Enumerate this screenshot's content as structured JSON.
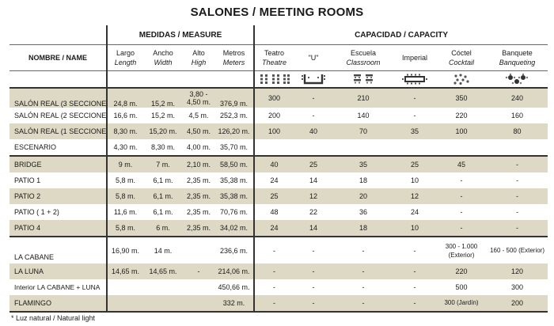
{
  "title": "SALONES / MEETING ROOMS",
  "groups": {
    "measures": "MEDIDAS / MEASURE",
    "capacity": "CAPACIDAD / CAPACITY"
  },
  "headers": {
    "name": "NOMBRE / NAME",
    "largo": "Largo",
    "length": "Length",
    "ancho": "Ancho",
    "width": "Width",
    "alto": "Alto",
    "high": "High",
    "metros": "Metros",
    "meters": "Meters",
    "teatro": "Teatro",
    "theatre": "Theatre",
    "u": "\"U\"",
    "escuela": "Escuela",
    "classroom": "Classroom",
    "imperial": "Imperial",
    "coctel": "Cóctel",
    "cocktail": "Cocktail",
    "banquete": "Banquete",
    "banqueting": "Banqueting"
  },
  "icons": [
    "theatre-icon",
    "u-shape-icon",
    "classroom-icon",
    "imperial-icon",
    "cocktail-icon",
    "banquet-icon"
  ],
  "shade_color": "#ddd9c4",
  "rows": [
    {
      "name": "SALÓN REAL (3 SECCIONES)",
      "largo": "24,8 m.",
      "ancho": "15,2 m.",
      "alto": "3,80 - 4,50 m.",
      "metros": "376,9 m.",
      "teatro": "300",
      "u": "-",
      "escuela": "210",
      "imperial": "-",
      "coctel": "350",
      "banquete": "240"
    },
    {
      "name": "SALÓN REAL (2 SECCIONES)",
      "largo": "16,6 m.",
      "ancho": "15,2 m.",
      "alto": "4,5 m.",
      "metros": "252,3 m.",
      "teatro": "200",
      "u": "-",
      "escuela": "140",
      "imperial": "-",
      "coctel": "220",
      "banquete": "160"
    },
    {
      "name": "SALÓN REAL (1 SECCIONES)",
      "largo": "8,30 m.",
      "ancho": "15,20 m.",
      "alto": "4,50 m.",
      "metros": "126,20 m.",
      "teatro": "100",
      "u": "40",
      "escuela": "70",
      "imperial": "35",
      "coctel": "100",
      "banquete": "80"
    },
    {
      "name": "ESCENARIO",
      "largo": "4,30 m.",
      "ancho": "8,30 m.",
      "alto": "4,00 m.",
      "metros": "35,70 m.",
      "teatro": "",
      "u": "",
      "escuela": "",
      "imperial": "",
      "coctel": "",
      "banquete": ""
    },
    {
      "name": "BRIDGE",
      "largo": "9 m.",
      "ancho": "7 m.",
      "alto": "2,10 m.",
      "metros": "58,50 m.",
      "teatro": "40",
      "u": "25",
      "escuela": "35",
      "imperial": "25",
      "coctel": "45",
      "banquete": "-"
    },
    {
      "name": "PATIO 1",
      "largo": "5,8 m.",
      "ancho": "6,1 m.",
      "alto": "2,35 m.",
      "metros": "35,38 m.",
      "teatro": "24",
      "u": "14",
      "escuela": "18",
      "imperial": "10",
      "coctel": "-",
      "banquete": "-"
    },
    {
      "name": "PATIO 2",
      "largo": "5,8 m.",
      "ancho": "6,1 m.",
      "alto": "2,35 m.",
      "metros": "35,38 m.",
      "teatro": "25",
      "u": "12",
      "escuela": "20",
      "imperial": "12",
      "coctel": "-",
      "banquete": "-"
    },
    {
      "name": "PATIO ( 1 + 2)",
      "largo": "11,6 m.",
      "ancho": "6,1 m.",
      "alto": "2,35 m.",
      "metros": "70,76 m.",
      "teatro": "48",
      "u": "22",
      "escuela": "36",
      "imperial": "24",
      "coctel": "-",
      "banquete": "-"
    },
    {
      "name": "PATIO 4",
      "largo": "5,8 m.",
      "ancho": "6 m.",
      "alto": "2,35 m.",
      "metros": "34,02 m.",
      "teatro": "24",
      "u": "14",
      "escuela": "18",
      "imperial": "10",
      "coctel": "-",
      "banquete": "-"
    },
    {
      "name": "LA CABANE",
      "largo": "16,90 m.",
      "ancho": "14 m.",
      "alto": "",
      "metros": "236,6 m.",
      "teatro": "-",
      "u": "-",
      "escuela": "-",
      "imperial": "-",
      "coctel": "300 - 1.000 (Exterior)",
      "banquete": "160 - 500 (Exterior)"
    },
    {
      "name": "LA LUNA",
      "largo": "14,65 m.",
      "ancho": "14,65 m.",
      "alto": "-",
      "metros": "214,06 m.",
      "teatro": "-",
      "u": "-",
      "escuela": "-",
      "imperial": "-",
      "coctel": "220",
      "banquete": "120"
    },
    {
      "name": "Interior LA CABANE + LUNA",
      "largo": "",
      "ancho": "",
      "alto": "",
      "metros": "450,66 m.",
      "teatro": "-",
      "u": "-",
      "escuela": "-",
      "imperial": "-",
      "coctel": "500",
      "banquete": "300"
    },
    {
      "name": "FLAMINGO",
      "largo": "",
      "ancho": "",
      "alto": "",
      "metros": "332 m.",
      "teatro": "-",
      "u": "-",
      "escuela": "-",
      "imperial": "-",
      "coctel": "300 (Jardín)",
      "banquete": "200"
    }
  ],
  "footnote": "* Luz natural / Natural light"
}
